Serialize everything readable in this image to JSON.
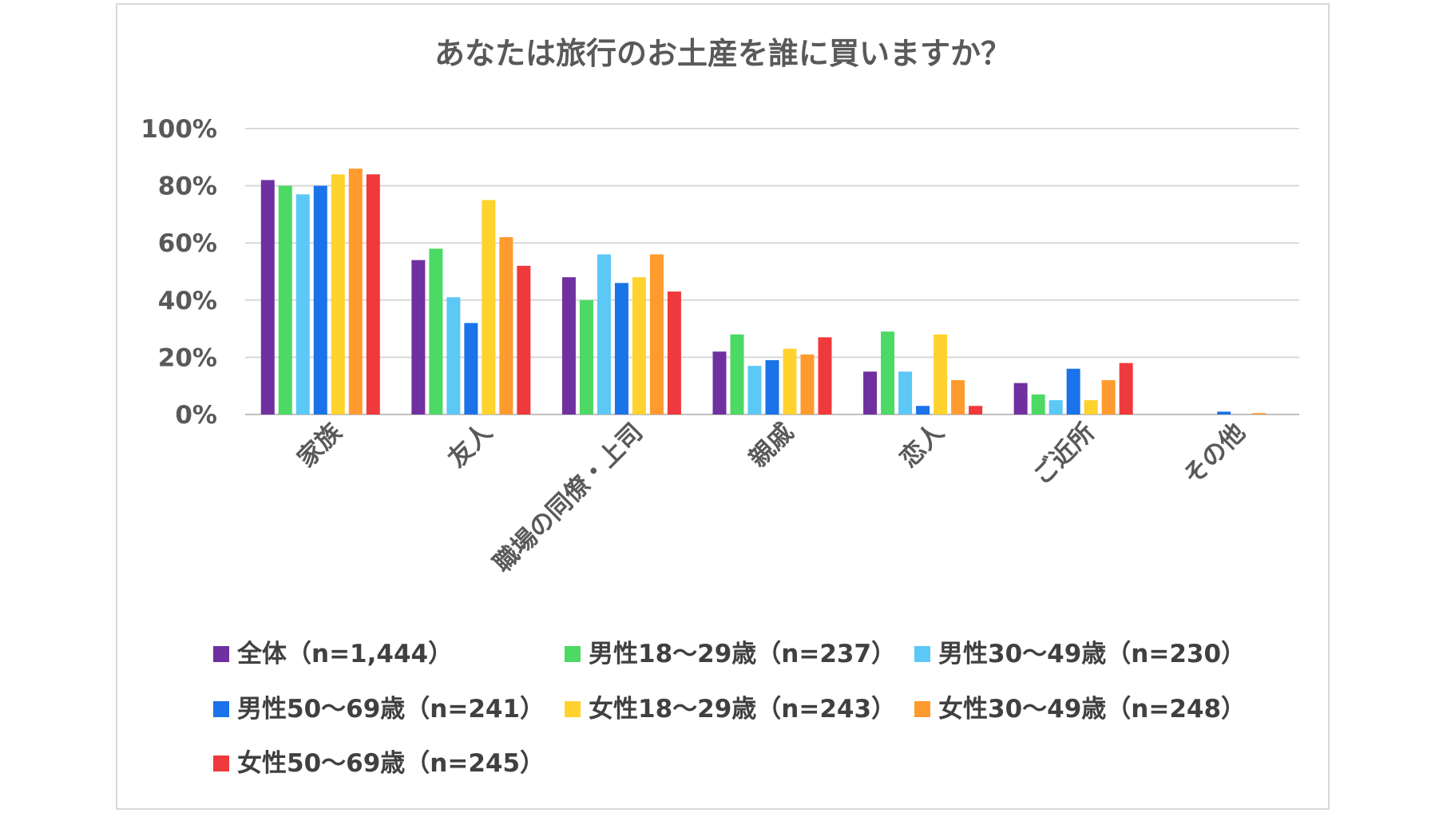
{
  "chart_data": {
    "type": "bar",
    "title": "あなたは旅行のお土産を誰に買いますか？",
    "xlabel": "",
    "ylabel": "",
    "ylim": [
      0,
      100
    ],
    "y_ticks": [
      "0%",
      "20%",
      "40%",
      "60%",
      "80%",
      "100%"
    ],
    "y_tick_values": [
      0,
      20,
      40,
      60,
      80,
      100
    ],
    "grid": true,
    "legend_position": "bottom",
    "categories": [
      "家族",
      "友人",
      "職場の同僚・上司",
      "親戚",
      "恋人",
      "ご近所",
      "その他"
    ],
    "series": [
      {
        "name": "全体（n=1,444）",
        "color": "#7030a0",
        "values": [
          82,
          54,
          48,
          22,
          15,
          11,
          0
        ]
      },
      {
        "name": "男性18～29歳（n=237）",
        "color": "#4cd964",
        "values": [
          80,
          58,
          40,
          28,
          29,
          7,
          0
        ]
      },
      {
        "name": "男性30～49歳（n=230）",
        "color": "#5bc8f5",
        "values": [
          77,
          41,
          56,
          17,
          15,
          5,
          0
        ]
      },
      {
        "name": "男性50～69歳（n=241）",
        "color": "#1a73e8",
        "values": [
          80,
          32,
          46,
          19,
          3,
          16,
          1
        ]
      },
      {
        "name": "女性18～29歳（n=243）",
        "color": "#ffd22e",
        "values": [
          84,
          75,
          48,
          23,
          28,
          5,
          0
        ]
      },
      {
        "name": "女性30～49歳（n=248）",
        "color": "#ff9a2e",
        "values": [
          86,
          62,
          56,
          21,
          12,
          12,
          0.5
        ]
      },
      {
        "name": "女性50～69歳（n=245）",
        "color": "#f0393c",
        "values": [
          84,
          52,
          43,
          27,
          3,
          18,
          0
        ]
      }
    ]
  }
}
